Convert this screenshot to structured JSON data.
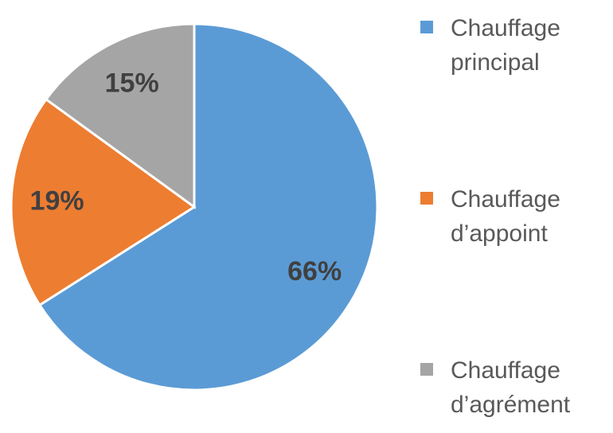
{
  "chart_data": {
    "type": "pie",
    "categories": [
      "Chauffage principal",
      "Chauffage d’appoint",
      "Chauffage d’agrément"
    ],
    "values": [
      66,
      19,
      15
    ],
    "value_labels": [
      "66%",
      "19%",
      "15%"
    ],
    "colors": [
      "#5b9bd5",
      "#ed7d31",
      "#a5a5a5"
    ],
    "legend": "right"
  }
}
